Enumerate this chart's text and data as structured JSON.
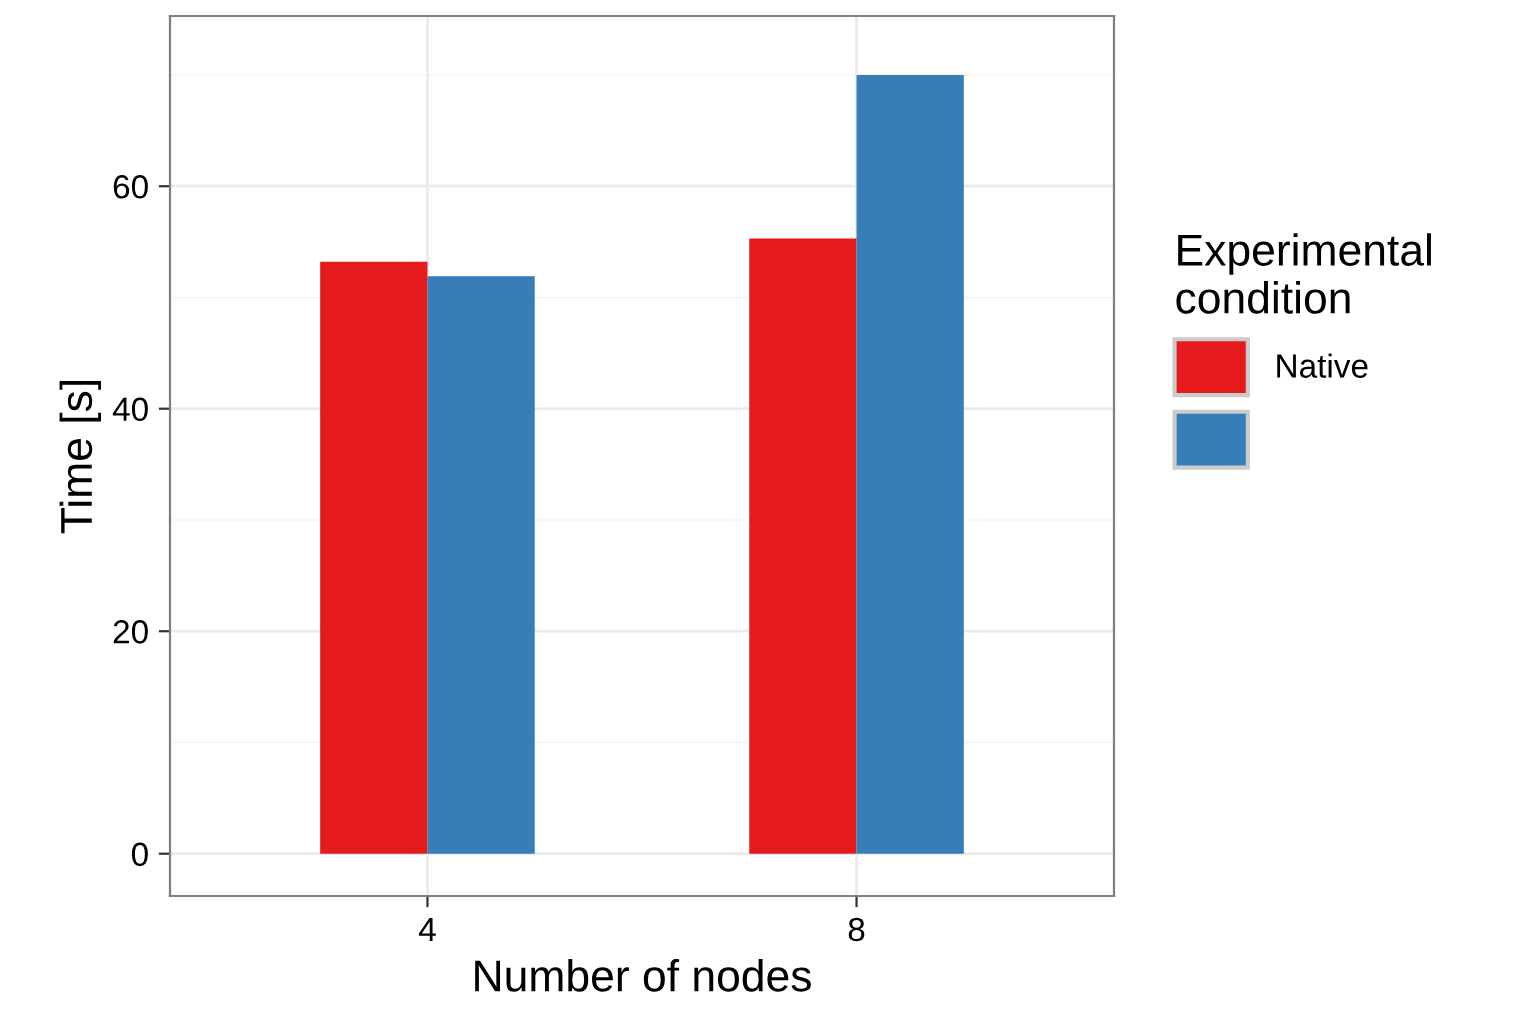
{
  "chart_data": {
    "type": "bar",
    "xlabel": "Number of nodes",
    "ylabel": "Time [s]",
    "legend_title": "Experimental\ncondition",
    "categories": [
      "4",
      "8"
    ],
    "series": [
      {
        "name": "Native",
        "color": "#e41a1c",
        "values": [
          53.2,
          55.3
        ]
      },
      {
        "color": "#377eb8",
        "values": [
          51.9,
          70.0
        ]
      }
    ],
    "ylim": [
      -3.8,
      75.3
    ],
    "yticks": [
      0,
      20,
      40,
      60
    ],
    "grid": true,
    "legend": "right"
  }
}
